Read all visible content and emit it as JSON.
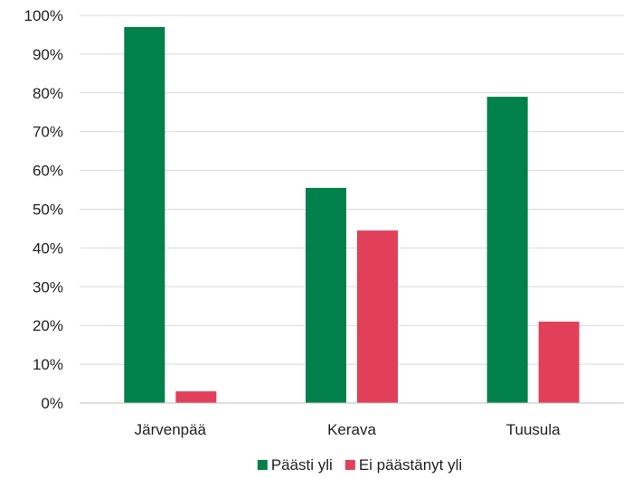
{
  "chart_data": {
    "type": "bar",
    "categories": [
      "Järvenpää",
      "Kerava",
      "Tuusula"
    ],
    "series": [
      {
        "name": "Päästi yli",
        "values": [
          97,
          55.5,
          79
        ],
        "color": "#00804a"
      },
      {
        "name": "Ei päästänyt yli",
        "values": [
          3,
          44.5,
          21
        ],
        "color": "#e2405a"
      }
    ],
    "y_ticks": [
      "0%",
      "10%",
      "20%",
      "30%",
      "40%",
      "50%",
      "60%",
      "70%",
      "80%",
      "90%",
      "100%"
    ],
    "ylim": [
      0,
      100
    ],
    "title": "",
    "xlabel": "",
    "ylabel": "",
    "grid": true,
    "legend_position": "bottom"
  }
}
